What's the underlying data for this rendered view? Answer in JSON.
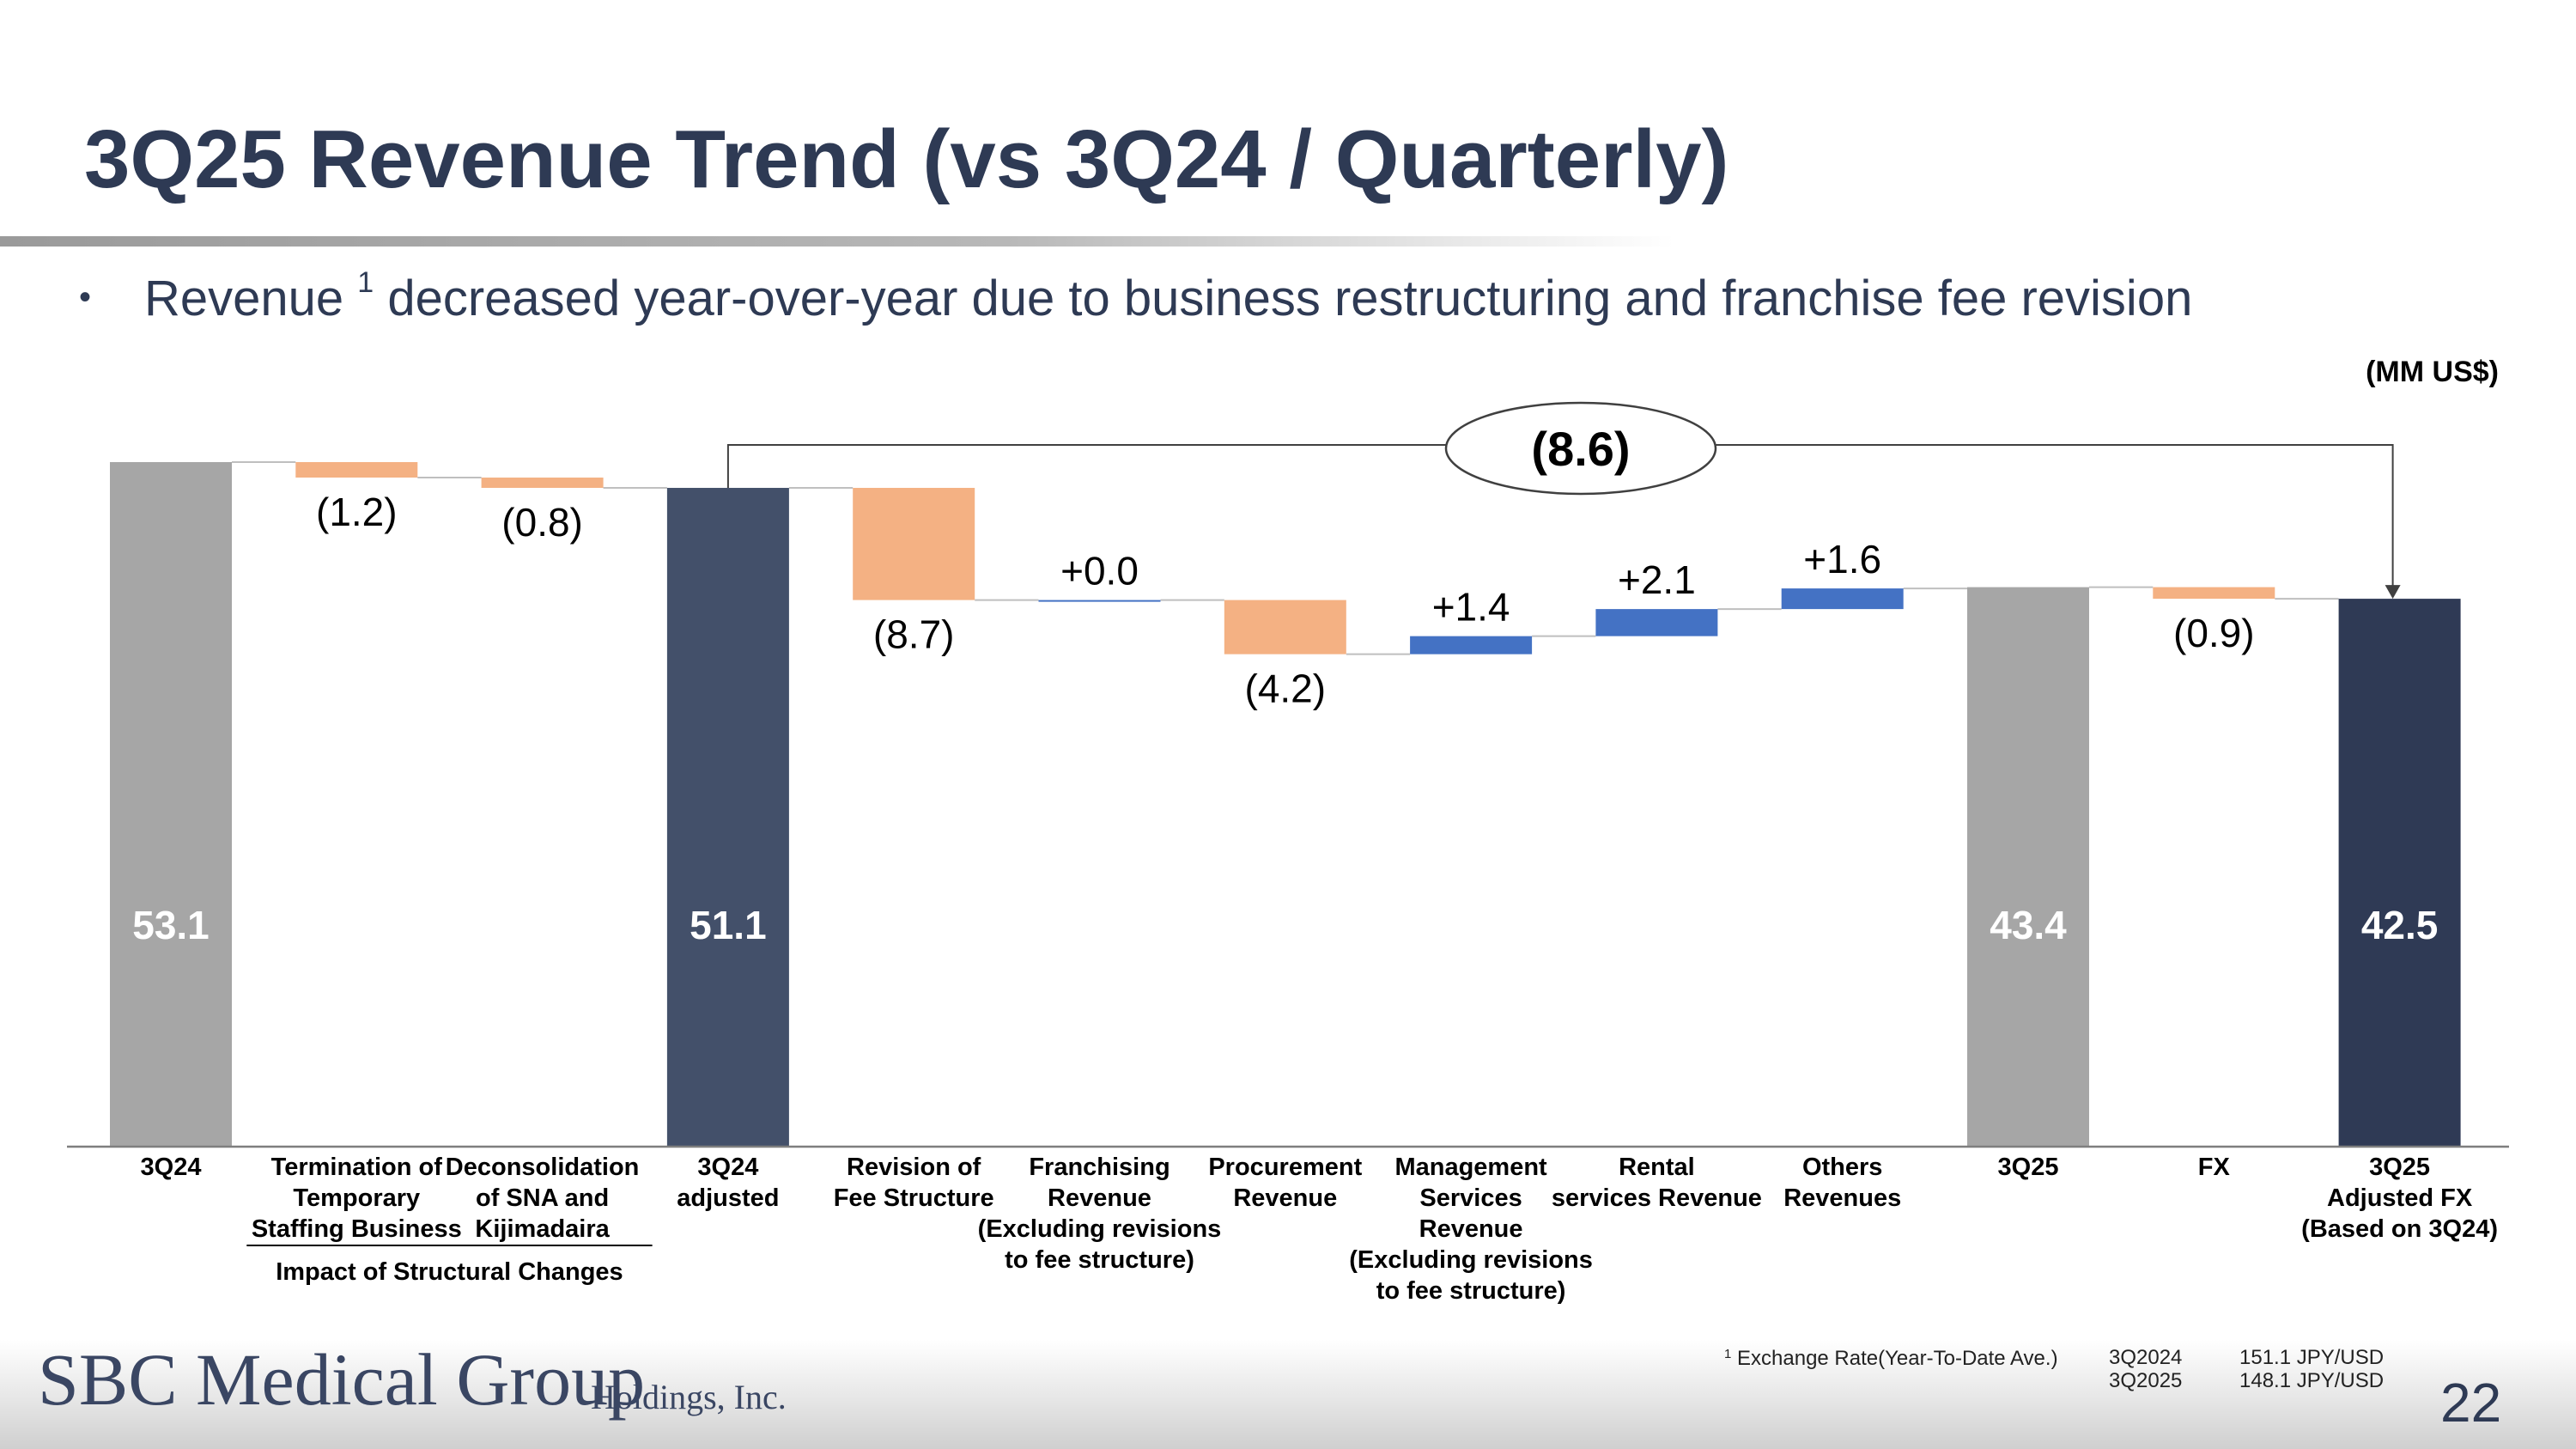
{
  "header": {
    "title": "3Q25 Revenue Trend (vs 3Q24 / Quarterly)",
    "bullet_text": "Revenue",
    "bullet_sup": "1",
    "bullet_rest": "decreased year-over-year due to business restructuring and franchise fee revision",
    "unit": "(MM US$)"
  },
  "chart_data": {
    "type": "bar",
    "subtype": "waterfall",
    "categories": [
      "3Q24",
      "Termination of Temporary Staffing Business",
      "Deconsolidation of SNA and Kijimadaira",
      "3Q24 adjusted",
      "Revision of Fee Structure",
      "Franchising Revenue (Excluding revisions to fee structure)",
      "Procurement Revenue",
      "Management Services Revenue (Excluding revisions to fee structure)",
      "Rental services Revenue",
      "Others Revenues",
      "3Q25",
      "FX",
      "3Q25 Adjusted FX (Based on 3Q24)"
    ],
    "category_lines": [
      [
        "3Q24"
      ],
      [
        "Termination of",
        "Temporary",
        "Staffing Business"
      ],
      [
        "Deconsolidation",
        "of SNA and",
        "Kijimadaira"
      ],
      [
        "3Q24",
        "adjusted"
      ],
      [
        "Revision of",
        "Fee Structure"
      ],
      [
        "Franchising",
        "Revenue",
        "(Excluding revisions",
        "to fee structure)"
      ],
      [
        "Procurement",
        "Revenue"
      ],
      [
        "Management",
        "Services",
        "Revenue",
        "(Excluding revisions",
        "to fee structure)"
      ],
      [
        "Rental",
        "services Revenue"
      ],
      [
        "Others",
        "Revenues"
      ],
      [
        "3Q25"
      ],
      [
        "FX"
      ],
      [
        "3Q25",
        "Adjusted FX",
        "(Based on 3Q24)"
      ]
    ],
    "values": [
      53.1,
      -1.2,
      -0.8,
      51.1,
      -8.7,
      0.0,
      -4.2,
      1.4,
      2.1,
      1.6,
      43.4,
      -0.9,
      42.5
    ],
    "bar_kinds": [
      "total",
      "delta",
      "delta",
      "total",
      "delta",
      "delta",
      "delta",
      "delta",
      "delta",
      "delta",
      "total",
      "delta",
      "total"
    ],
    "data_labels": [
      "53.1",
      "(1.2)",
      "(0.8)",
      "51.1",
      "(8.7)",
      "+0.0",
      "(4.2)",
      "+1.4",
      "+2.1",
      "+1.6",
      "43.4",
      "(0.9)",
      "42.5"
    ],
    "group_label": "Impact of Structural Changes",
    "overall_change_label": "(8.6)",
    "ylim": [
      0,
      53.1
    ],
    "colors": {
      "total_gray": "#a6a6a6",
      "total_navy": "#43506a",
      "total_dark": "#2f3a55",
      "decrease": "#f4b183",
      "increase": "#4472c4"
    },
    "total_colors": [
      "total_gray",
      "total_navy",
      "total_gray",
      "total_dark"
    ]
  },
  "footer": {
    "logo_main": "SBC Medical Group",
    "logo_sub": "Holdings, Inc.",
    "fx_note_sup": "1",
    "fx_note": "Exchange Rate(Year-To-Date Ave.)",
    "fx_rows": [
      {
        "quarter": "3Q2024",
        "rate": "151.1 JPY/USD"
      },
      {
        "quarter": "3Q2025",
        "rate": "148.1 JPY/USD"
      }
    ],
    "page_number": "22"
  }
}
